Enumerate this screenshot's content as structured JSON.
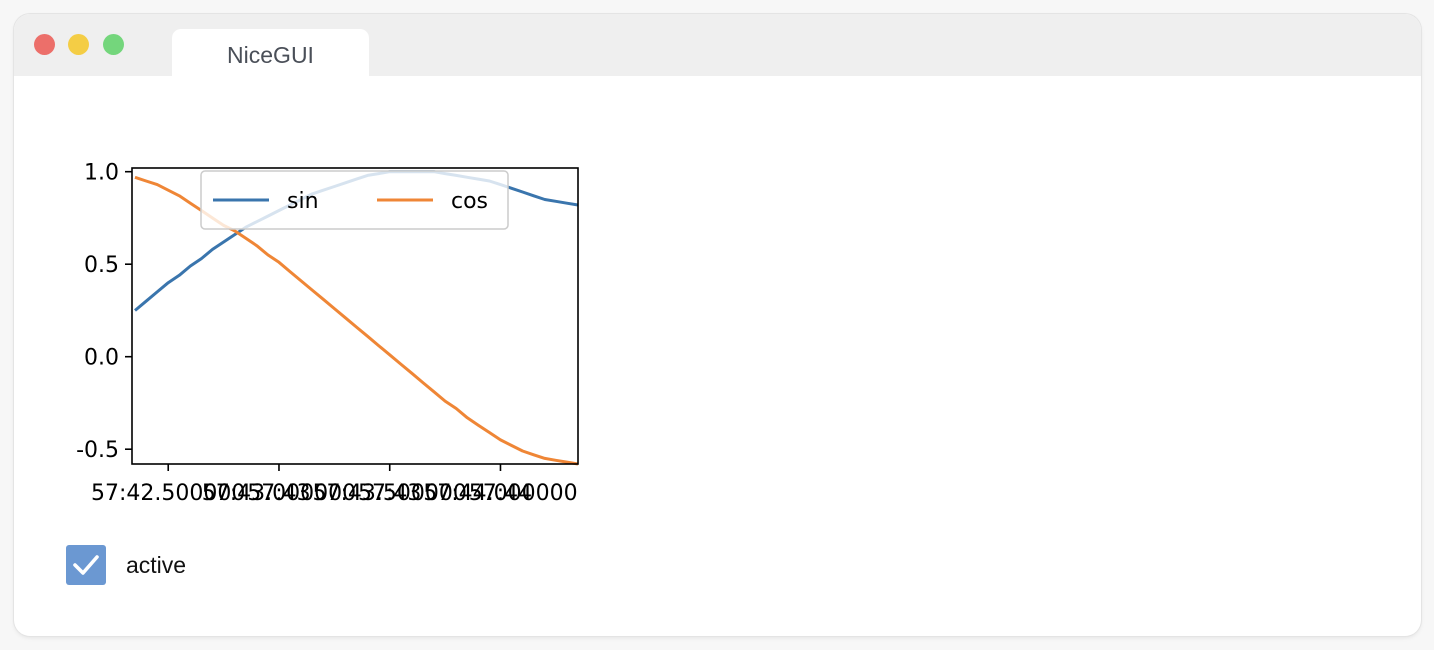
{
  "window": {
    "tab_title": "NiceGUI"
  },
  "chart_data": {
    "type": "line",
    "x": [
      "57:42.35",
      "57:42.40",
      "57:42.45",
      "57:42.50",
      "57:42.55",
      "57:42.60",
      "57:42.65",
      "57:42.70",
      "57:42.75",
      "57:42.80",
      "57:42.85",
      "57:42.90",
      "57:42.95",
      "57:43.00",
      "57:43.05",
      "57:43.10",
      "57:43.15",
      "57:43.20",
      "57:43.25",
      "57:43.30",
      "57:43.35",
      "57:43.40",
      "57:43.45",
      "57:43.50",
      "57:43.55",
      "57:43.60",
      "57:43.65",
      "57:43.70",
      "57:43.75",
      "57:43.80",
      "57:43.85",
      "57:43.90",
      "57:43.95",
      "57:44.00",
      "57:44.05",
      "57:44.10",
      "57:44.15",
      "57:44.20",
      "57:44.25",
      "57:44.30",
      "57:44.35"
    ],
    "series": [
      {
        "name": "sin",
        "values": [
          0.25,
          0.3,
          0.35,
          0.4,
          0.44,
          0.49,
          0.53,
          0.58,
          0.62,
          0.66,
          0.7,
          0.73,
          0.76,
          0.79,
          0.82,
          0.85,
          0.88,
          0.9,
          0.92,
          0.94,
          0.96,
          0.98,
          0.99,
          1.0,
          1.0,
          1.0,
          1.0,
          1.0,
          0.99,
          0.98,
          0.97,
          0.96,
          0.95,
          0.93,
          0.91,
          0.89,
          0.87,
          0.85,
          0.84,
          0.83,
          0.82
        ],
        "color": "#3a75ad"
      },
      {
        "name": "cos",
        "values": [
          0.97,
          0.95,
          0.93,
          0.9,
          0.87,
          0.83,
          0.79,
          0.75,
          0.71,
          0.68,
          0.64,
          0.6,
          0.55,
          0.51,
          0.46,
          0.41,
          0.36,
          0.31,
          0.26,
          0.21,
          0.16,
          0.11,
          0.06,
          0.01,
          -0.04,
          -0.09,
          -0.14,
          -0.19,
          -0.24,
          -0.28,
          -0.33,
          -0.37,
          -0.41,
          -0.45,
          -0.48,
          -0.51,
          -0.53,
          -0.55,
          -0.56,
          -0.57,
          -0.58
        ],
        "color": "#ef8636"
      }
    ],
    "ylim": [
      -0.58,
      1.02
    ],
    "y_ticks": [
      {
        "value": 1.0,
        "label": "1.0"
      },
      {
        "value": 0.5,
        "label": "0.5"
      },
      {
        "value": 0.0,
        "label": "0.0"
      },
      {
        "value": -0.5,
        "label": "-0.5"
      }
    ],
    "x_ticks": [
      {
        "index": 3,
        "label": "57:42.500000"
      },
      {
        "index": 13,
        "label": "57:43"
      },
      {
        "index": 13,
        "label": "57:43.000000"
      },
      {
        "index": 23,
        "label": "57:43"
      },
      {
        "index": 23,
        "label": "57:43.500000"
      },
      {
        "index": 33,
        "label": "57:44"
      },
      {
        "index": 33,
        "label": "57:44.000000"
      }
    ],
    "legend": "top-center",
    "grid": false
  },
  "checkbox": {
    "label": "active",
    "checked": true,
    "color": "#6b98d2"
  }
}
